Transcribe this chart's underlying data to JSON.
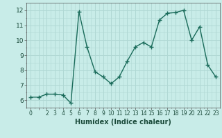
{
  "x": [
    0,
    1,
    2,
    3,
    4,
    5,
    6,
    7,
    8,
    9,
    10,
    11,
    12,
    13,
    14,
    15,
    16,
    17,
    18,
    19,
    20,
    21,
    22,
    23
  ],
  "y": [
    6.2,
    6.2,
    6.4,
    6.4,
    6.35,
    5.8,
    11.9,
    9.55,
    7.9,
    7.55,
    7.1,
    7.55,
    8.6,
    9.55,
    9.85,
    9.55,
    11.35,
    11.8,
    11.85,
    12.0,
    10.0,
    10.9,
    8.35,
    7.55
  ],
  "line_color": "#1a6b5a",
  "marker": "+",
  "markersize": 4,
  "linewidth": 1.0,
  "bg_color": "#c8ece8",
  "grid_color": "#b0d8d4",
  "xlabel": "Humidex (Indice chaleur)",
  "xlabel_fontsize": 7,
  "yticks": [
    6,
    7,
    8,
    9,
    10,
    11,
    12
  ],
  "ylim": [
    5.5,
    12.5
  ],
  "xlim": [
    -0.5,
    23.5
  ]
}
